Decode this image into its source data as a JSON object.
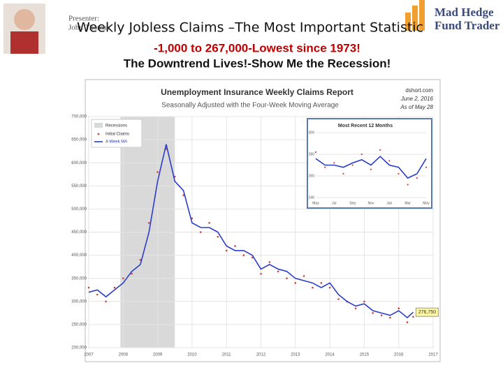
{
  "slide": {
    "title": "Weekly Jobless Claims –The Most Important Statistic",
    "subtitle": "-1,000 to 267,000-Lowest since 1973!",
    "subtitle2": "The Downtrend Lives!-Show Me the Recession!",
    "presenter": "Presenter:",
    "presenter_name": "John Thomas",
    "logo_line1": "Mad Hedge",
    "logo_line2": "Fund Trader"
  },
  "chart_data": [
    {
      "type": "line",
      "title": "Unemployment Insurance Weekly Claims Report",
      "subtitle": "Seasonally Adjusted with the Four-Week Moving Average",
      "source": "dshort.com",
      "date": "June 2, 2016",
      "asof": "As of May 28",
      "x": [
        2007.0,
        2007.25,
        2007.5,
        2007.75,
        2008.0,
        2008.25,
        2008.5,
        2008.75,
        2009.0,
        2009.25,
        2009.5,
        2009.75,
        2010.0,
        2010.25,
        2010.5,
        2010.75,
        2011.0,
        2011.25,
        2011.5,
        2011.75,
        2012.0,
        2012.25,
        2012.5,
        2012.75,
        2013.0,
        2013.25,
        2013.5,
        2013.75,
        2014.0,
        2014.25,
        2014.5,
        2014.75,
        2015.0,
        2015.25,
        2015.5,
        2015.75,
        2016.0,
        2016.25,
        2016.42
      ],
      "series": [
        {
          "name": "Initial Claims",
          "color": "#d04040",
          "style": "dots",
          "values": [
            330000,
            315000,
            300000,
            330000,
            350000,
            360000,
            390000,
            470000,
            580000,
            630000,
            570000,
            530000,
            480000,
            450000,
            470000,
            440000,
            410000,
            420000,
            400000,
            395000,
            360000,
            385000,
            365000,
            350000,
            340000,
            355000,
            330000,
            340000,
            330000,
            305000,
            300000,
            285000,
            300000,
            275000,
            270000,
            265000,
            285000,
            255000,
            267000
          ]
        },
        {
          "name": "4-Week MA",
          "color": "#2a3cc8",
          "style": "line",
          "values": [
            320000,
            325000,
            310000,
            325000,
            340000,
            365000,
            380000,
            450000,
            560000,
            640000,
            560000,
            540000,
            470000,
            460000,
            460000,
            450000,
            420000,
            410000,
            410000,
            400000,
            370000,
            380000,
            370000,
            365000,
            350000,
            345000,
            340000,
            330000,
            340000,
            315000,
            300000,
            290000,
            295000,
            280000,
            275000,
            270000,
            280000,
            265000,
            276750
          ]
        }
      ],
      "recessions": [
        {
          "name": "Recessions",
          "start": 2007.92,
          "end": 2009.5,
          "color": "#d9d9d9"
        }
      ],
      "annotations": [
        {
          "text": "276,750",
          "x": 2016.42,
          "y": 276750
        }
      ],
      "xlim": [
        2007,
        2017
      ],
      "xticks": [
        2007,
        2008,
        2009,
        2010,
        2011,
        2012,
        2013,
        2014,
        2015,
        2016,
        2017
      ],
      "ylim": [
        200000,
        700000
      ],
      "yticks": [
        {
          "value": 200000,
          "label": "200,000"
        },
        {
          "value": 250000,
          "label": "250,000"
        },
        {
          "value": 300000,
          "label": "300,000"
        },
        {
          "value": 350000,
          "label": "350,000"
        },
        {
          "value": 400000,
          "label": "400,000"
        },
        {
          "value": 450000,
          "label": "450,000"
        },
        {
          "value": 500000,
          "label": "500,000"
        },
        {
          "value": 550000,
          "label": "550,000"
        },
        {
          "value": 600000,
          "label": "600,000"
        },
        {
          "value": 650000,
          "label": "650,000"
        },
        {
          "value": 700000,
          "label": "700,000"
        }
      ],
      "grid": true,
      "legend": "upper left"
    },
    {
      "type": "line",
      "title": "Most Recent 12 Months",
      "categories": [
        "May",
        null,
        "Jul",
        null,
        "Sep",
        null,
        "Nov",
        null,
        "Jan",
        null,
        "Mar",
        null,
        "May"
      ],
      "series": [
        {
          "name": "Initial Claims",
          "color": "#d04040",
          "style": "dots",
          "values": [
            282,
            268,
            272,
            262,
            270,
            280,
            266,
            284,
            274,
            262,
            252,
            258,
            268
          ]
        },
        {
          "name": "4-Week MA",
          "color": "#2a3cc8",
          "style": "line",
          "values": [
            276,
            270,
            270,
            268,
            272,
            275,
            270,
            278,
            270,
            268,
            258,
            262,
            276
          ]
        }
      ],
      "ylim": [
        240,
        300
      ],
      "yticks": [
        240,
        260,
        280,
        300
      ],
      "grid": true
    }
  ]
}
